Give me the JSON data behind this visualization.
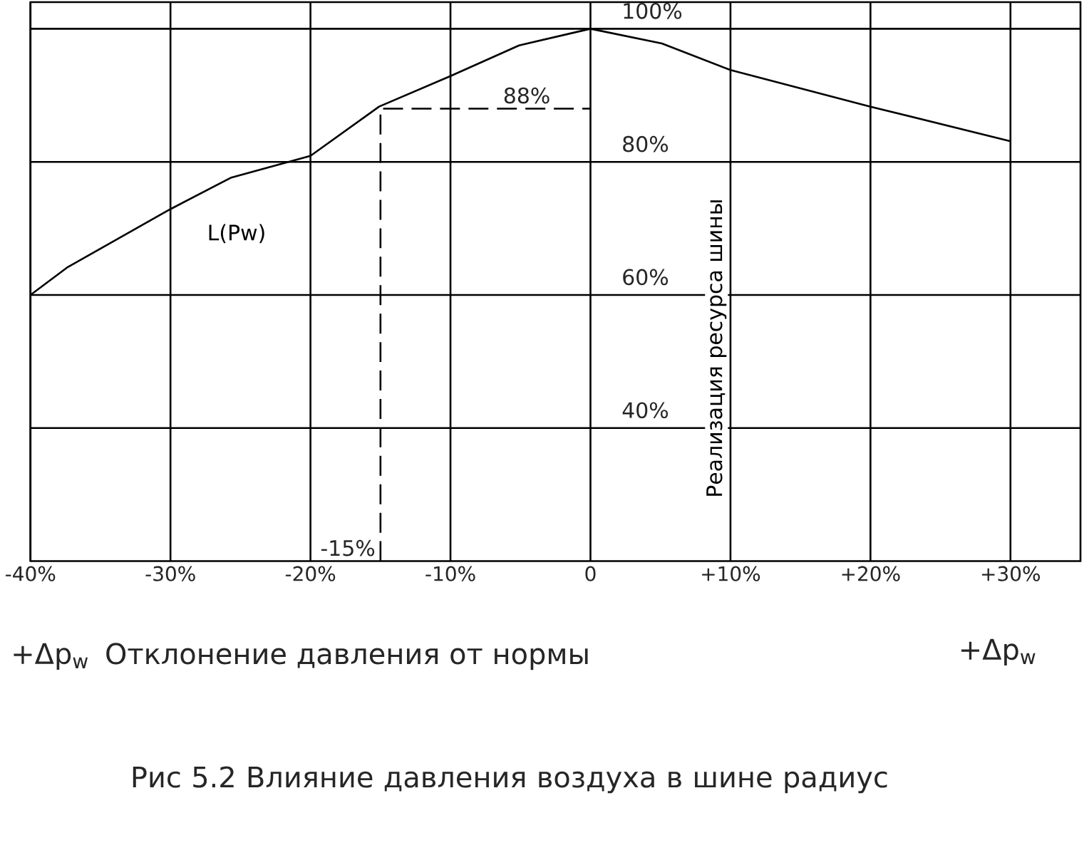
{
  "chart_data": {
    "type": "line",
    "title": "Рис 5.2  Влияние давления воздуха в шине радиус",
    "xlabel": "Отклонение давления от нормы",
    "ylabel": "Реализация ресурса шины",
    "xlim": [
      -40,
      35
    ],
    "ylim": [
      20,
      104
    ],
    "xticks": [
      {
        "value": -40,
        "label": "-40%"
      },
      {
        "value": -30,
        "label": "-30%"
      },
      {
        "value": -20,
        "label": "-20%"
      },
      {
        "value": -10,
        "label": "-10%"
      },
      0,
      {
        "value": 10,
        "label": "+10%"
      },
      {
        "value": 20,
        "label": "+20%"
      },
      {
        "value": 30,
        "label": "+30%"
      }
    ],
    "yticks": [
      {
        "value": 40,
        "label": "40%"
      },
      {
        "value": 60,
        "label": "60%"
      },
      {
        "value": 80,
        "label": "80%"
      },
      {
        "value": 100,
        "label": "100%"
      }
    ],
    "grid": true,
    "marker": "none",
    "series": [
      {
        "name": "L(Pw)",
        "color": "#000000",
        "line_style": "solid",
        "x": [
          -40,
          -37.4,
          -30,
          -25.7,
          -20,
          -15.1,
          -10,
          -5.1,
          0,
          5.1,
          10,
          20,
          30
        ],
        "values": [
          60,
          64.1,
          72.9,
          77.6,
          80.9,
          88.3,
          92.9,
          97.5,
          100,
          97.8,
          93.8,
          88.3,
          83.1
        ]
      },
      {
        "color": "#000000",
        "line_style": "dashed",
        "x": [
          -15,
          -15,
          0
        ],
        "values": [
          20,
          88,
          88
        ]
      }
    ],
    "annotations": [
      "+Δp$_{w}$",
      "+Δp$_{w}$",
      {
        "text": "88%",
        "x": -2.5,
        "y": 88
      },
      {
        "text": "-15%",
        "x": -15,
        "y": 20
      }
    ]
  }
}
